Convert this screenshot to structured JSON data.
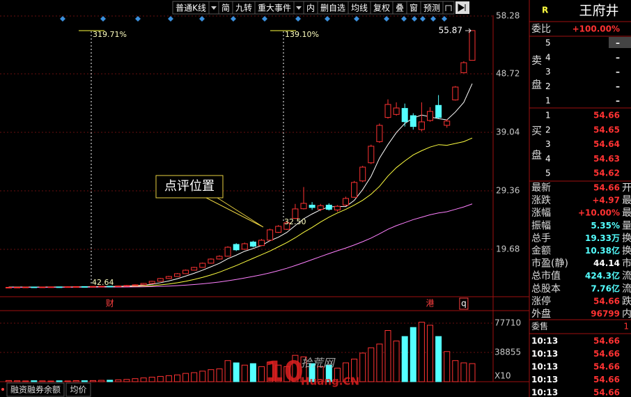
{
  "toolbar": {
    "buttons": [
      "普通K线",
      "简",
      "九转",
      "重大事件",
      "内",
      "删自选",
      "均线",
      "复权",
      "叠",
      "窗",
      "预测"
    ]
  },
  "chart_data": {
    "type": "candlestick",
    "categories": [
      null,
      null,
      null,
      null,
      null,
      null,
      null,
      null,
      null,
      null,
      null,
      null,
      "财",
      null,
      null,
      null,
      null,
      null,
      null,
      null,
      null,
      null,
      null,
      null,
      null,
      null,
      null,
      null,
      null,
      null,
      null,
      null,
      null,
      null,
      null,
      null,
      null,
      null,
      null,
      null,
      null,
      null,
      null,
      null,
      null,
      null,
      null,
      null,
      null,
      null,
      "港",
      null,
      null,
      null,
      "q",
      null
    ],
    "open": [
      13.38,
      13.4,
      13.42,
      13.46,
      13.43,
      13.46,
      13.48,
      13.45,
      13.5,
      13.52,
      13.48,
      13.55,
      13.58,
      13.55,
      13.62,
      13.7,
      13.82,
      14.05,
      14.4,
      14.86,
      15.2,
      15.66,
      16.24,
      16.7,
      17.39,
      18.08,
      18.54,
      20.5,
      19.7,
      20.9,
      20.3,
      21.2,
      22.5,
      23.0,
      24.8,
      26.4,
      27.0,
      26.3,
      27.0,
      26.2,
      27.0,
      28.3,
      31.0,
      34.0,
      37.5,
      41.5,
      42.0,
      43.0,
      41.8,
      39.5,
      41.0,
      43.5,
      40.2,
      44.4,
      48.9,
      50.95
    ],
    "high": [
      13.45,
      13.47,
      13.5,
      13.5,
      13.5,
      13.52,
      13.52,
      13.55,
      13.56,
      13.56,
      13.6,
      13.62,
      13.62,
      13.68,
      13.78,
      13.9,
      14.12,
      14.48,
      14.95,
      15.3,
      15.75,
      16.35,
      16.8,
      17.5,
      18.2,
      18.7,
      20.2,
      20.7,
      20.8,
      21.1,
      21.4,
      23.1,
      23.7,
      24.3,
      27.2,
      30.0,
      27.5,
      27.2,
      27.3,
      27.0,
      28.4,
      31.0,
      33.5,
      37.0,
      40.5,
      44.5,
      44.0,
      43.8,
      42.2,
      44.0,
      43.2,
      45.2,
      41.2,
      46.7,
      50.8,
      55.87
    ],
    "low": [
      13.35,
      13.37,
      13.4,
      13.4,
      13.4,
      13.43,
      13.42,
      13.42,
      13.47,
      13.45,
      13.45,
      13.52,
      13.52,
      13.52,
      13.58,
      13.66,
      13.78,
      14.0,
      14.35,
      14.8,
      15.15,
      15.6,
      16.2,
      16.65,
      17.3,
      18.0,
      18.5,
      19.4,
      19.6,
      20.0,
      20.2,
      21.1,
      22.4,
      22.9,
      24.7,
      26.3,
      26.2,
      26.0,
      26.1,
      25.9,
      26.9,
      28.2,
      30.8,
      33.8,
      37.3,
      41.3,
      41.8,
      40.0,
      39.5,
      39.2,
      40.8,
      41.3,
      39.8,
      44.3,
      48.8,
      50.9
    ],
    "close": [
      13.4,
      13.42,
      13.45,
      13.43,
      13.46,
      13.48,
      13.45,
      13.5,
      13.52,
      13.48,
      13.55,
      13.58,
      13.55,
      13.62,
      13.7,
      13.81,
      14.04,
      14.39,
      14.85,
      15.19,
      15.65,
      16.23,
      16.69,
      17.38,
      18.07,
      18.53,
      20.03,
      19.6,
      20.61,
      20.2,
      21.19,
      22.91,
      23.49,
      24.07,
      26.37,
      27.29,
      26.6,
      26.9,
      26.3,
      26.8,
      28.1,
      30.75,
      33.28,
      36.74,
      40.19,
      43.65,
      43.07,
      40.8,
      40.0,
      40.77,
      42.5,
      41.5,
      40.9,
      46.53,
      50.56,
      55.87
    ],
    "up_color": "#ff3232",
    "down_color": "#54ffff",
    "ma": [
      {
        "color": "#ffffff",
        "values": [
          13.44,
          13.44,
          13.45,
          13.45,
          13.44,
          13.45,
          13.46,
          13.46,
          13.48,
          13.49,
          13.51,
          13.53,
          13.54,
          13.56,
          13.6,
          13.66,
          13.76,
          13.91,
          14.16,
          14.46,
          14.82,
          15.26,
          15.72,
          16.23,
          16.8,
          17.37,
          18.14,
          18.72,
          19.37,
          19.81,
          20.33,
          21.11,
          21.69,
          22.48,
          23.61,
          24.74,
          25.53,
          26.23,
          26.69,
          26.78,
          26.76,
          27.77,
          29.57,
          31.75,
          34.77,
          37.0,
          39.0,
          40.5,
          41.4,
          41.9,
          41.6,
          41.3,
          41.1,
          42.4,
          44.0,
          47.1
        ]
      },
      {
        "color": "#ffff40",
        "values": [
          13.42,
          13.42,
          13.43,
          13.43,
          13.43,
          13.44,
          13.44,
          13.45,
          13.45,
          13.46,
          13.47,
          13.48,
          13.49,
          13.5,
          13.52,
          13.55,
          13.6,
          13.68,
          13.8,
          13.95,
          14.15,
          14.4,
          14.7,
          15.05,
          15.45,
          15.9,
          16.45,
          17.0,
          17.6,
          18.2,
          18.8,
          19.4,
          20.1,
          20.8,
          21.6,
          22.5,
          23.3,
          24.2,
          25.0,
          25.7,
          26.3,
          27.0,
          27.8,
          28.8,
          30.1,
          31.8,
          33.2,
          34.3,
          35.3,
          36.0,
          36.6,
          37.0,
          36.9,
          37.2,
          37.5,
          38.1
        ]
      },
      {
        "color": "#ff80ff",
        "values": [
          13.4,
          13.4,
          13.4,
          13.41,
          13.41,
          13.41,
          13.42,
          13.42,
          13.42,
          13.43,
          13.43,
          13.44,
          13.44,
          13.45,
          13.46,
          13.47,
          13.49,
          13.52,
          13.56,
          13.61,
          13.68,
          13.76,
          13.86,
          13.98,
          14.12,
          14.28,
          14.48,
          14.7,
          14.94,
          15.2,
          15.48,
          15.8,
          16.15,
          16.55,
          17.0,
          17.48,
          17.98,
          18.48,
          18.98,
          19.45,
          19.9,
          20.4,
          20.95,
          21.55,
          22.25,
          23.0,
          23.6,
          24.1,
          24.6,
          25.0,
          25.4,
          25.7,
          25.9,
          26.3,
          26.7,
          27.2
        ]
      }
    ],
    "ylim": [
      12.77,
      58.28
    ],
    "yticks": [
      58.28,
      48.72,
      39.04,
      29.36,
      19.68
    ],
    "grid": true,
    "annotations": [
      "319.71%",
      "139.10%",
      "42.64",
      "32.50",
      "55.87",
      "点评位置"
    ],
    "volume": {
      "values": [
        1500,
        1200,
        1000,
        1300,
        1100,
        900,
        1200,
        1000,
        1400,
        1300,
        1500,
        1800,
        2000,
        2500,
        3000,
        4000,
        5000,
        6000,
        7000,
        8000,
        9000,
        11000,
        12000,
        14000,
        16000,
        17000,
        28000,
        25000,
        22000,
        24000,
        20000,
        26000,
        22000,
        20000,
        35000,
        33000,
        24000,
        20000,
        22000,
        18000,
        25000,
        30000,
        38000,
        45000,
        50000,
        68000,
        54000,
        60000,
        72000,
        79000,
        75000,
        60000,
        40000,
        28000,
        25000,
        24000
      ],
      "ylim": [
        0,
        92510
      ],
      "yticks": [
        77710,
        38855
      ],
      "label": "X10"
    }
  },
  "side_panel": {
    "code": "R",
    "name": "王府井",
    "ratio_label": "委比",
    "ratio": "+100.00%",
    "sell_label": [
      "卖",
      "盘"
    ],
    "buy_label": [
      "买",
      "盘"
    ],
    "sell": [
      [
        "5",
        "–"
      ],
      [
        "4",
        "–"
      ],
      [
        "3",
        "–"
      ],
      [
        "2",
        "–"
      ],
      [
        "1",
        "–"
      ]
    ],
    "buy": [
      [
        "1",
        "54.66"
      ],
      [
        "2",
        "54.65"
      ],
      [
        "3",
        "54.64"
      ],
      [
        "4",
        "54.63"
      ],
      [
        "5",
        "54.62"
      ]
    ],
    "stats": [
      [
        "最新",
        "54.66",
        "开"
      ],
      [
        "涨跌",
        "+4.97",
        "最"
      ],
      [
        "涨幅",
        "+10.00%",
        "最"
      ],
      [
        "振幅",
        "5.35%",
        "量"
      ],
      [
        "总手",
        "19.33万",
        "换"
      ],
      [
        "金额",
        "10.38亿",
        "换"
      ],
      [
        "市盈(静)",
        "44.14",
        "市"
      ],
      [
        "总市值",
        "424.3亿",
        "流"
      ],
      [
        "总股本",
        "7.76亿",
        "流"
      ],
      [
        "涨停",
        "54.66",
        "跌"
      ],
      [
        "外盘",
        "96799",
        "内"
      ]
    ],
    "ticks_header": [
      "委售",
      "1"
    ],
    "ticks": [
      [
        "10:13",
        "54.66"
      ],
      [
        "10:13",
        "54.66"
      ],
      [
        "10:13",
        "54.66"
      ],
      [
        "10:13",
        "54.66"
      ],
      [
        "10:13",
        "54.66"
      ]
    ]
  },
  "footer": {
    "tabs": [
      "融资融券余额",
      "均价"
    ]
  },
  "watermark": {
    "number": "10",
    "site": "拾荒网",
    "domain": "Huang.CN"
  }
}
